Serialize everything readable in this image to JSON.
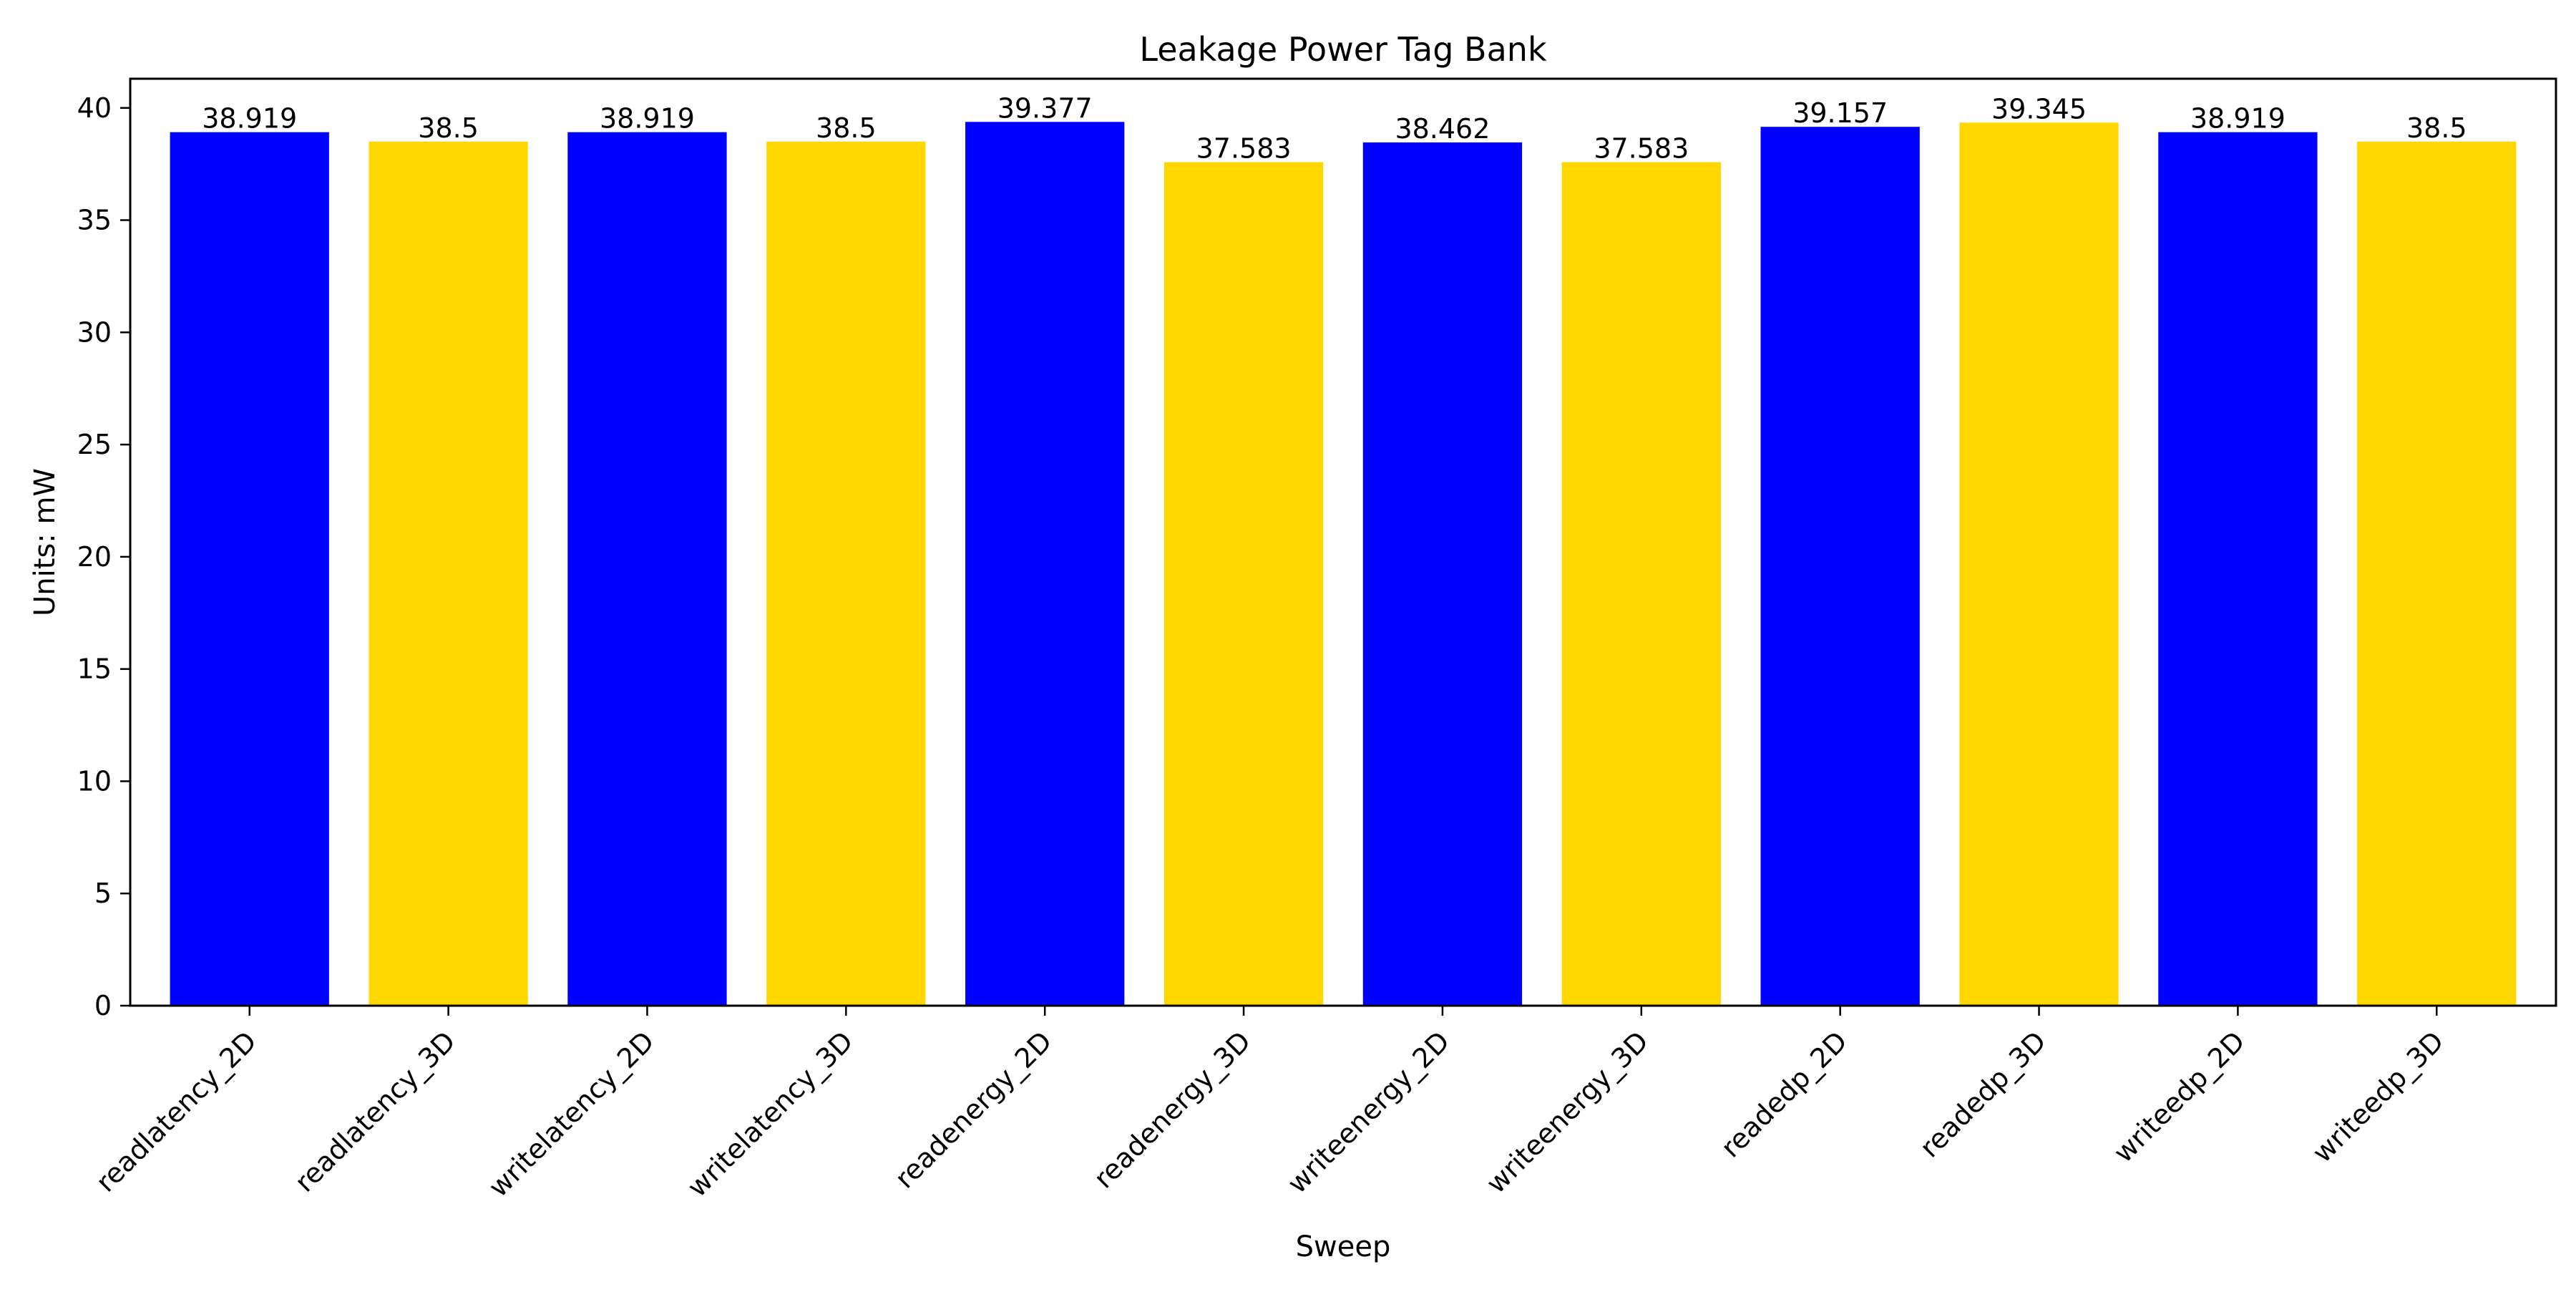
{
  "chart_data": {
    "type": "bar",
    "title": "Leakage Power Tag Bank",
    "xlabel": "Sweep",
    "ylabel": "Units: mW",
    "categories": [
      "readlatency_2D",
      "readlatency_3D",
      "writelatency_2D",
      "writelatency_3D",
      "readenergy_2D",
      "readenergy_3D",
      "writeenergy_2D",
      "writeenergy_3D",
      "readedp_2D",
      "readedp_3D",
      "writeedp_2D",
      "writeedp_3D"
    ],
    "values": [
      38.919,
      38.5,
      38.919,
      38.5,
      39.377,
      37.583,
      38.462,
      37.583,
      39.157,
      39.345,
      38.919,
      38.5
    ],
    "value_labels": [
      "38.919",
      "38.5",
      "38.919",
      "38.5",
      "39.377",
      "37.583",
      "38.462",
      "37.583",
      "39.157",
      "39.345",
      "38.919",
      "38.5"
    ],
    "bar_colors": [
      "#0000ff",
      "#ffd700",
      "#0000ff",
      "#ffd700",
      "#0000ff",
      "#ffd700",
      "#0000ff",
      "#ffd700",
      "#0000ff",
      "#ffd700",
      "#0000ff",
      "#ffd700"
    ],
    "ylim": [
      0,
      41.3
    ],
    "yticks": [
      0,
      5,
      10,
      15,
      20,
      25,
      30,
      35,
      40
    ],
    "grid": false,
    "legend": "none"
  }
}
